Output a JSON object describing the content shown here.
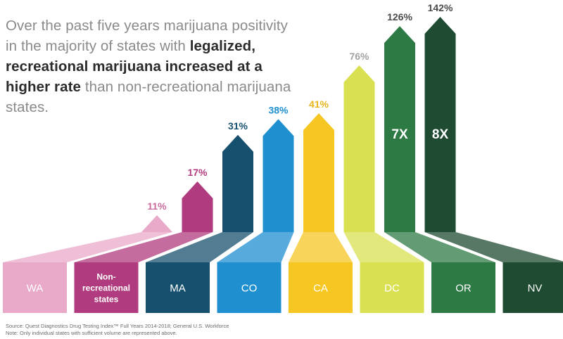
{
  "headline": {
    "part1": "Over the past five years marijuana positivity in the majority of states with ",
    "bold": "legalized, recreational marijuana increased at a higher rate",
    "part2": " than non-recreational marijuana states."
  },
  "chart_data": {
    "type": "bar",
    "categories": [
      "WA",
      "Non-recreational states",
      "MA",
      "CO",
      "CA",
      "DC",
      "OR",
      "NV"
    ],
    "category_lines": [
      [
        "WA"
      ],
      [
        "Non-",
        "recreational",
        "states"
      ],
      [
        "MA"
      ],
      [
        "CO"
      ],
      [
        "CA"
      ],
      [
        "DC"
      ],
      [
        "OR"
      ],
      [
        "NV"
      ]
    ],
    "values": [
      11,
      17,
      31,
      38,
      41,
      76,
      126,
      142
    ],
    "value_labels": [
      "11%",
      "17%",
      "31%",
      "38%",
      "41%",
      "76%",
      "126%",
      "142%"
    ],
    "multiplier_labels": [
      "",
      "",
      "",
      "",
      "",
      "",
      "7X",
      "8X"
    ],
    "colors": [
      "#e9a9c9",
      "#b03b7e",
      "#17506e",
      "#1f8fd0",
      "#f6c623",
      "#d9e052",
      "#2d7a45",
      "#1e4b32"
    ],
    "value_label_colors": [
      "#c86b9d",
      "#b03b7e",
      "#17506e",
      "#1f8fd0",
      "#e8b51d",
      "#a2a2a2",
      "#4a4a4a",
      "#4a4a4a"
    ],
    "base_label_color": "#ffffff",
    "unit": "%",
    "ylim": [
      0,
      142
    ]
  },
  "footnotes": {
    "source": "Source: Quest Diagnostics Drug Testing Index™ Full Years 2014-2018; General U.S. Workforce",
    "note": "Note: Only individual states with sufficient volume are represented above."
  }
}
